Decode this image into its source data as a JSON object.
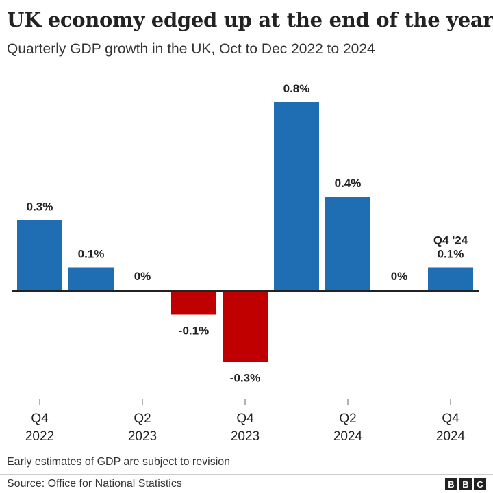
{
  "header": {
    "title": "UK economy edged up at the end of the year",
    "subtitle": "Quarterly GDP growth in the UK, Oct to Dec 2022 to 2024"
  },
  "chart_data": {
    "type": "bar",
    "title": "UK economy edged up at the end of the year",
    "subtitle": "Quarterly GDP growth in the UK, Oct to Dec 2022 to 2024",
    "categories": [
      "Q4 2022",
      "Q1 2023",
      "Q2 2023",
      "Q3 2023",
      "Q4 2023",
      "Q1 2024",
      "Q2 2024",
      "Q3 2024",
      "Q4 2024"
    ],
    "values": [
      0.3,
      0.1,
      0,
      -0.1,
      -0.3,
      0.8,
      0.4,
      0,
      0.1
    ],
    "value_labels": [
      "0.3%",
      "0.1%",
      "0%",
      "-0.1%",
      "-0.3%",
      "0.8%",
      "0.4%",
      "0%",
      "0.1%"
    ],
    "last_bar_annotation": "Q4 '24",
    "tick_labels": [
      {
        "index": 0,
        "line1": "Q4",
        "line2": "2022"
      },
      {
        "index": 2,
        "line1": "Q2",
        "line2": "2023"
      },
      {
        "index": 4,
        "line1": "Q4",
        "line2": "2023"
      },
      {
        "index": 6,
        "line1": "Q2",
        "line2": "2024"
      },
      {
        "index": 8,
        "line1": "Q4",
        "line2": "2024"
      }
    ],
    "xlabel": "",
    "ylabel": "",
    "unit": "%",
    "ylim": [
      -0.3,
      0.8
    ],
    "grid": false,
    "colors": {
      "positive": "#1f6eb4",
      "negative": "#c00000",
      "zero_line": "#222222",
      "tick": "#999999"
    }
  },
  "footer": {
    "note": "Early estimates of GDP are subject to revision",
    "source": "Source: Office for National Statistics",
    "logo_letters": [
      "B",
      "B",
      "C"
    ]
  }
}
